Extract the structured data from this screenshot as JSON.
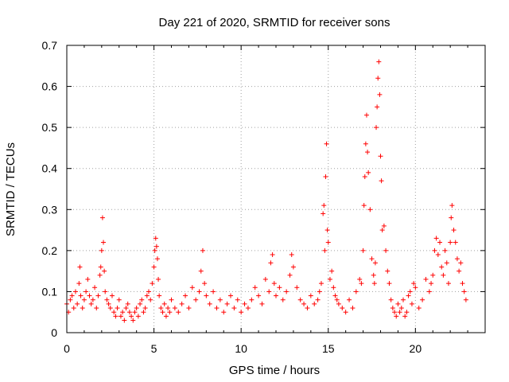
{
  "chart_data": {
    "type": "scatter",
    "title": "Day 221 of 2020, SRMTID for receiver sons",
    "xlabel": "GPS time / hours",
    "ylabel": "SRMTID / TECUs",
    "xlim": [
      0,
      24
    ],
    "ylim": [
      0,
      0.7
    ],
    "x_ticks": [
      0,
      5,
      10,
      15,
      20
    ],
    "y_ticks": [
      0,
      0.1,
      0.2,
      0.3,
      0.4,
      0.5,
      0.6,
      0.7
    ],
    "x_tick_labels": [
      "0",
      "5",
      "10",
      "15",
      "20"
    ],
    "y_tick_labels": [
      "0",
      "0.1",
      "0.2",
      "0.3",
      "0.4",
      "0.5",
      "0.6",
      "0.7"
    ],
    "grid": true,
    "marker": "+",
    "marker_color": "#ff0000",
    "series": [
      {
        "name": "SRMTID",
        "x": [
          0.0,
          0.1,
          0.2,
          0.3,
          0.4,
          0.5,
          0.6,
          0.7,
          0.75,
          0.8,
          0.9,
          1.0,
          1.1,
          1.2,
          1.3,
          1.4,
          1.5,
          1.6,
          1.7,
          1.8,
          1.9,
          1.95,
          2.0,
          2.05,
          2.1,
          2.15,
          2.2,
          2.3,
          2.4,
          2.5,
          2.6,
          2.7,
          2.8,
          2.9,
          3.0,
          3.1,
          3.2,
          3.3,
          3.4,
          3.5,
          3.6,
          3.7,
          3.8,
          3.9,
          4.0,
          4.1,
          4.2,
          4.3,
          4.4,
          4.5,
          4.6,
          4.7,
          4.8,
          4.9,
          5.0,
          5.05,
          5.1,
          5.15,
          5.2,
          5.25,
          5.3,
          5.4,
          5.5,
          5.6,
          5.7,
          5.8,
          5.9,
          6.0,
          6.2,
          6.4,
          6.6,
          6.8,
          7.0,
          7.2,
          7.4,
          7.6,
          7.7,
          7.8,
          7.9,
          8.0,
          8.2,
          8.4,
          8.6,
          8.8,
          9.0,
          9.2,
          9.4,
          9.6,
          9.8,
          10.0,
          10.2,
          10.4,
          10.6,
          10.8,
          11.0,
          11.2,
          11.4,
          11.6,
          11.7,
          11.8,
          11.9,
          12.0,
          12.2,
          12.4,
          12.6,
          12.8,
          12.9,
          13.0,
          13.2,
          13.4,
          13.6,
          13.8,
          14.0,
          14.2,
          14.4,
          14.5,
          14.6,
          14.7,
          14.75,
          14.8,
          14.85,
          14.9,
          14.95,
          15.0,
          15.1,
          15.2,
          15.3,
          15.4,
          15.5,
          15.6,
          15.8,
          16.0,
          16.2,
          16.4,
          16.6,
          16.8,
          16.9,
          17.0,
          17.05,
          17.1,
          17.15,
          17.2,
          17.25,
          17.3,
          17.4,
          17.5,
          17.6,
          17.65,
          17.7,
          17.75,
          17.8,
          17.85,
          17.9,
          17.95,
          18.0,
          18.05,
          18.1,
          18.2,
          18.3,
          18.4,
          18.5,
          18.6,
          18.7,
          18.8,
          18.9,
          19.0,
          19.1,
          19.2,
          19.3,
          19.4,
          19.5,
          19.6,
          19.7,
          19.8,
          19.9,
          20.0,
          20.2,
          20.4,
          20.6,
          20.8,
          20.9,
          21.0,
          21.1,
          21.2,
          21.3,
          21.4,
          21.5,
          21.6,
          21.7,
          21.8,
          21.9,
          22.0,
          22.05,
          22.1,
          22.2,
          22.3,
          22.4,
          22.5,
          22.6,
          22.7,
          22.8,
          22.9
        ],
        "y": [
          0.07,
          0.05,
          0.08,
          0.09,
          0.06,
          0.1,
          0.07,
          0.12,
          0.16,
          0.09,
          0.06,
          0.08,
          0.1,
          0.13,
          0.09,
          0.07,
          0.08,
          0.11,
          0.06,
          0.09,
          0.14,
          0.16,
          0.2,
          0.28,
          0.22,
          0.15,
          0.1,
          0.08,
          0.07,
          0.06,
          0.09,
          0.05,
          0.04,
          0.06,
          0.08,
          0.04,
          0.05,
          0.03,
          0.06,
          0.07,
          0.05,
          0.04,
          0.03,
          0.05,
          0.06,
          0.04,
          0.07,
          0.08,
          0.05,
          0.06,
          0.09,
          0.1,
          0.08,
          0.12,
          0.16,
          0.2,
          0.23,
          0.21,
          0.18,
          0.13,
          0.09,
          0.06,
          0.05,
          0.07,
          0.04,
          0.06,
          0.05,
          0.08,
          0.06,
          0.05,
          0.07,
          0.09,
          0.06,
          0.11,
          0.08,
          0.1,
          0.15,
          0.2,
          0.12,
          0.09,
          0.07,
          0.1,
          0.06,
          0.08,
          0.05,
          0.07,
          0.09,
          0.06,
          0.08,
          0.05,
          0.07,
          0.06,
          0.08,
          0.11,
          0.09,
          0.07,
          0.13,
          0.1,
          0.17,
          0.19,
          0.12,
          0.09,
          0.11,
          0.08,
          0.1,
          0.14,
          0.19,
          0.16,
          0.11,
          0.08,
          0.07,
          0.06,
          0.09,
          0.07,
          0.08,
          0.1,
          0.12,
          0.29,
          0.31,
          0.2,
          0.38,
          0.46,
          0.25,
          0.22,
          0.13,
          0.15,
          0.11,
          0.09,
          0.08,
          0.07,
          0.06,
          0.05,
          0.08,
          0.06,
          0.1,
          0.13,
          0.12,
          0.2,
          0.31,
          0.38,
          0.46,
          0.53,
          0.44,
          0.39,
          0.3,
          0.18,
          0.14,
          0.12,
          0.17,
          0.5,
          0.55,
          0.62,
          0.66,
          0.58,
          0.43,
          0.37,
          0.25,
          0.26,
          0.2,
          0.15,
          0.12,
          0.08,
          0.06,
          0.05,
          0.04,
          0.07,
          0.05,
          0.06,
          0.08,
          0.04,
          0.05,
          0.09,
          0.1,
          0.07,
          0.12,
          0.11,
          0.06,
          0.08,
          0.13,
          0.1,
          0.12,
          0.14,
          0.2,
          0.23,
          0.19,
          0.22,
          0.16,
          0.14,
          0.2,
          0.17,
          0.12,
          0.22,
          0.28,
          0.31,
          0.25,
          0.22,
          0.18,
          0.15,
          0.17,
          0.12,
          0.1,
          0.08
        ]
      }
    ]
  }
}
